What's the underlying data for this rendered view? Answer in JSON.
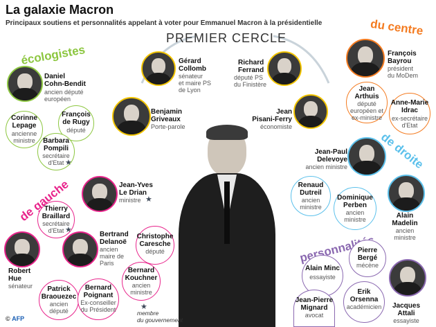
{
  "header": {
    "title": "La galaxie Macron",
    "subtitle": "Principaux soutiens et personnalités appelant à voter pour Emmanuel Macron à la présidentielle"
  },
  "groups": {
    "premier_cercle": "PREMIER CERCLE",
    "ecologistes": "écologistes",
    "du_centre": "du centre",
    "de_gauche": "de gauche",
    "de_droite": "de droite",
    "personnalites": "personnalités"
  },
  "colors": {
    "ecologistes": "#8cc63f",
    "centre": "#f47b20",
    "gauche": "#e8238b",
    "droite": "#5bc0eb",
    "personnalites": "#8a68b0",
    "premier_cercle": "#f2c400",
    "icon_star": "#3f4a5a"
  },
  "people": {
    "cohn_bendit": {
      "name": "Daniel\nCohn-Bendit",
      "role": "ancien député\neuropéen"
    },
    "lepage": {
      "name": "Corinne\nLepage",
      "role": "ancienne\nministre"
    },
    "de_rugy": {
      "name": "François\nde Rugy",
      "role": "député"
    },
    "pompili": {
      "name": "Barbara\nPompili",
      "role": "secrétaire\nd'Etat"
    },
    "collomb": {
      "name": "Gérard\nCollomb",
      "role": "sénateur\net maire PS\nde Lyon"
    },
    "ferrand": {
      "name": "Richard\nFerrand",
      "role": "député PS\ndu Finistère"
    },
    "griveaux": {
      "name": "Benjamin\nGriveaux",
      "role": "Porte-parole"
    },
    "pisani_ferry": {
      "name": "Jean\nPisani-Ferry",
      "role": "économiste"
    },
    "bayrou": {
      "name": "François\nBayrou",
      "role": "président\ndu MoDem"
    },
    "arthuis": {
      "name": "Jean\nArthuis",
      "role": "député\neuropéen et\nex-ministre"
    },
    "idrac": {
      "name": "Anne-Marie\nIdrac",
      "role": "ex-secrétaire\nd'Etat"
    },
    "le_drian": {
      "name": "Jean-Yves\nLe Drian",
      "role": "ministre"
    },
    "braillard": {
      "name": "Thierry\nBraillard",
      "role": "secrétaire\nd'Etat"
    },
    "delanoe": {
      "name": "Bertrand\nDelanoë",
      "role": "ancien\nmaire de\nParis"
    },
    "caresche": {
      "name": "Christophe\nCaresche",
      "role": "député"
    },
    "hue": {
      "name": "Robert\nHue",
      "role": "sénateur"
    },
    "kouchner": {
      "name": "Bernard\nKouchner",
      "role": "ancien\nministre"
    },
    "brauezec": {
      "name": "Patrick\nBraouezec",
      "role": "ancien\ndéputé"
    },
    "poignant": {
      "name": "Bernard\nPoignant",
      "role": "Ex-conseiller\ndu Président"
    },
    "delevoye": {
      "name": "Jean-Paul\nDelevoye",
      "role": "ancien ministre"
    },
    "dutreil": {
      "name": "Renaud\nDutreil",
      "role": "ancien\nministre"
    },
    "perben": {
      "name": "Dominique\nPerben",
      "role": "ancien\nministre"
    },
    "madelin": {
      "name": "Alain\nMadelin",
      "role": "ancien\nministre"
    },
    "minc": {
      "name": "Alain Minc",
      "role": "essayiste"
    },
    "berge": {
      "name": "Pierre\nBergé",
      "role": "mécène"
    },
    "mignard": {
      "name": "Jean-Pierre\nMignard",
      "role": "avocat"
    },
    "orsenna": {
      "name": "Erik\nOrsenna",
      "role": "académicien"
    },
    "attali": {
      "name": "Jacques\nAttali",
      "role": "essayiste"
    }
  },
  "legend": {
    "text": "membre\ndu gouvernement",
    "icon": "star-icon"
  },
  "credit": {
    "prefix": "© ",
    "agency": "AFP"
  }
}
